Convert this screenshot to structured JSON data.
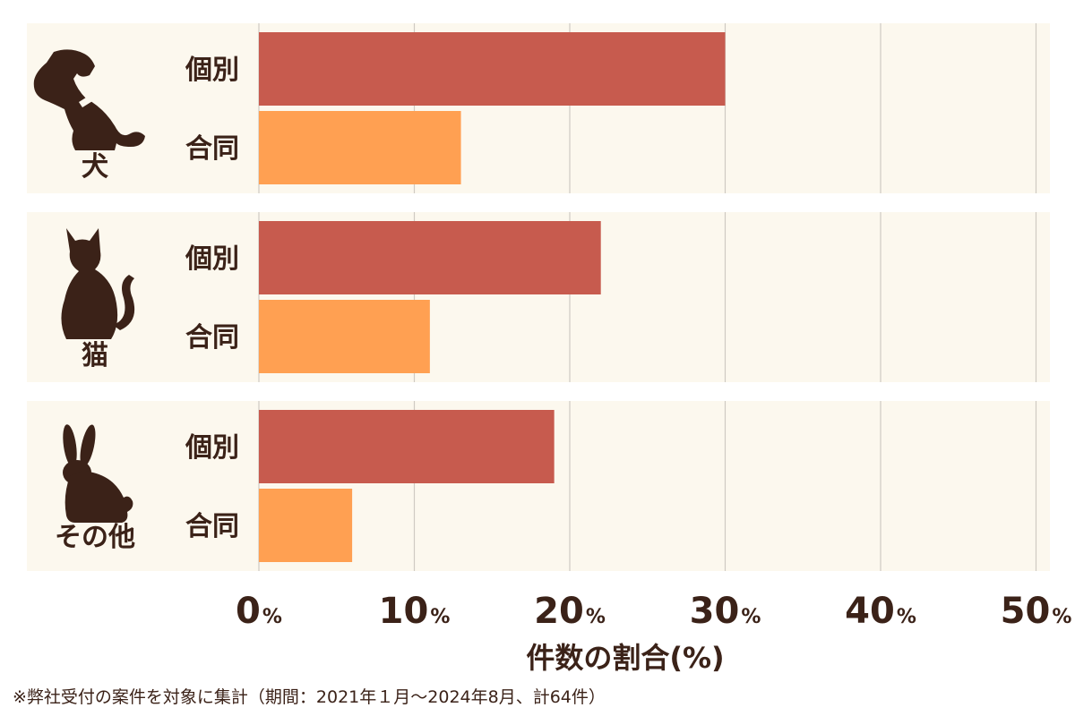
{
  "colors": {
    "individual": "#c75b4e",
    "joint": "#ffa052",
    "background": "#fcf8ee",
    "text": "#3b2218"
  },
  "chart_data": {
    "type": "bar",
    "orientation": "horizontal",
    "xlabel": "件数の割合(%)",
    "xlim": [
      0,
      50
    ],
    "ticks": [
      {
        "value": 0,
        "num": "0",
        "unit": "%"
      },
      {
        "value": 10,
        "num": "10",
        "unit": "%"
      },
      {
        "value": 20,
        "num": "20",
        "unit": "%"
      },
      {
        "value": 30,
        "num": "30",
        "unit": "%"
      },
      {
        "value": 40,
        "num": "40",
        "unit": "%"
      },
      {
        "value": 50,
        "num": "50",
        "unit": "%"
      }
    ],
    "grid": true,
    "groups": [
      {
        "name": "犬",
        "icon": "dog-icon",
        "bars": [
          {
            "label": "個別",
            "value": 30,
            "color": "#c75b4e"
          },
          {
            "label": "合同",
            "value": 13,
            "color": "#ffa052"
          }
        ]
      },
      {
        "name": "猫",
        "icon": "cat-icon",
        "bars": [
          {
            "label": "個別",
            "value": 22,
            "color": "#c75b4e"
          },
          {
            "label": "合同",
            "value": 11,
            "color": "#ffa052"
          }
        ]
      },
      {
        "name": "その他",
        "icon": "rabbit-icon",
        "bars": [
          {
            "label": "個別",
            "value": 19,
            "color": "#c75b4e"
          },
          {
            "label": "合同",
            "value": 6,
            "color": "#ffa052"
          }
        ]
      }
    ]
  },
  "footnote": "※弊社受付の案件を対象に集計（期間：2021年１月〜2024年8月、計64件）"
}
